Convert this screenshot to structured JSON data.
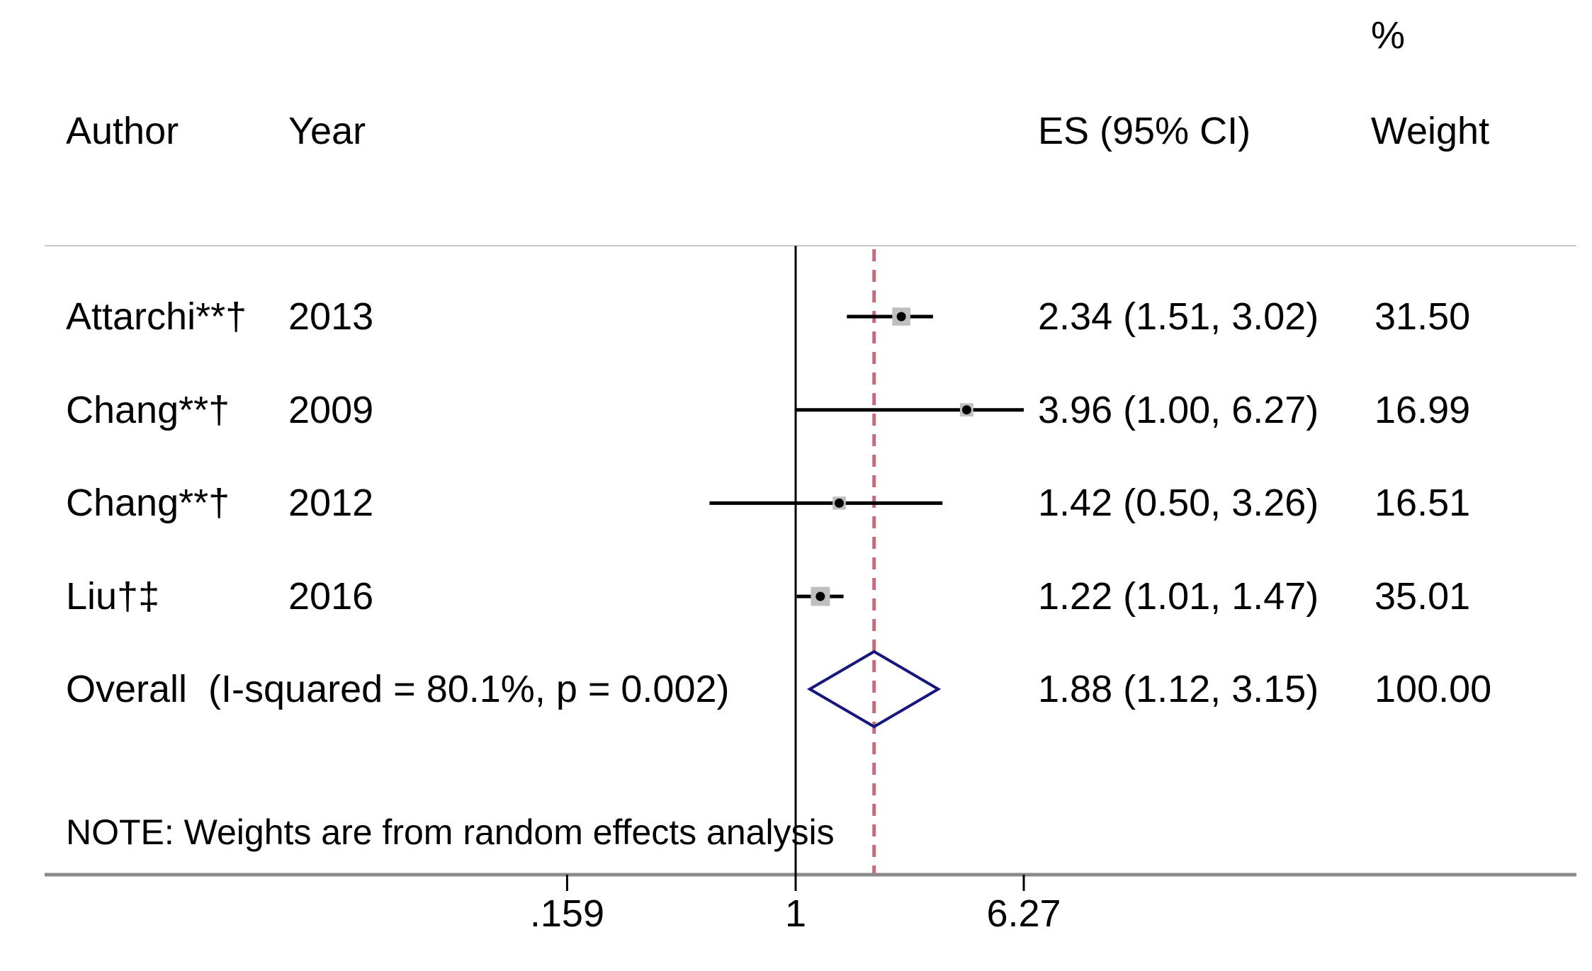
{
  "chart_data": {
    "type": "forest",
    "columns": {
      "author": "Author",
      "year": "Year",
      "es": "ES (95% CI)",
      "weight_pct": "%",
      "weight": "Weight"
    },
    "studies": [
      {
        "author": "Attarchi**†",
        "year": "2013",
        "es": 2.34,
        "lo": 1.51,
        "hi": 3.02,
        "es_label": "2.34 (1.51, 3.02)",
        "weight": 31.5,
        "weight_label": "31.50"
      },
      {
        "author": "Chang**†",
        "year": "2009",
        "es": 3.96,
        "lo": 1.0,
        "hi": 6.27,
        "es_label": "3.96 (1.00, 6.27)",
        "weight": 16.99,
        "weight_label": "16.99"
      },
      {
        "author": "Chang**†",
        "year": "2012",
        "es": 1.42,
        "lo": 0.5,
        "hi": 3.26,
        "es_label": "1.42 (0.50, 3.26)",
        "weight": 16.51,
        "weight_label": "16.51"
      },
      {
        "author": "Liu†‡",
        "year": "2016",
        "es": 1.22,
        "lo": 1.01,
        "hi": 1.47,
        "es_label": "1.22 (1.01, 1.47)",
        "weight": 35.01,
        "weight_label": "35.01"
      }
    ],
    "overall": {
      "label": "Overall  (I-squared = 80.1%, p = 0.002)",
      "es": 1.88,
      "lo": 1.12,
      "hi": 3.15,
      "es_label": "1.88 (1.12, 3.15)",
      "weight_label": "100.00"
    },
    "note": "NOTE: Weights are from random effects analysis",
    "x_axis": {
      "scale": "log",
      "ticks": [
        {
          "label": ".159",
          "value": 0.159
        },
        {
          "label": "1",
          "value": 1
        },
        {
          "label": "6.27",
          "value": 6.27
        }
      ],
      "null_line_value": 1,
      "ref_line_value": 1.88
    },
    "colors": {
      "text": "#000000",
      "ci_line": "#000000",
      "marker_square": "#bfbfbf",
      "marker_dot": "#000000",
      "diamond": "#16167d",
      "ref_line": "#c76a7a",
      "axis_line": "#000000",
      "rule_light": "#c9c9c9",
      "rule_heavy": "#8a8a8a"
    }
  }
}
